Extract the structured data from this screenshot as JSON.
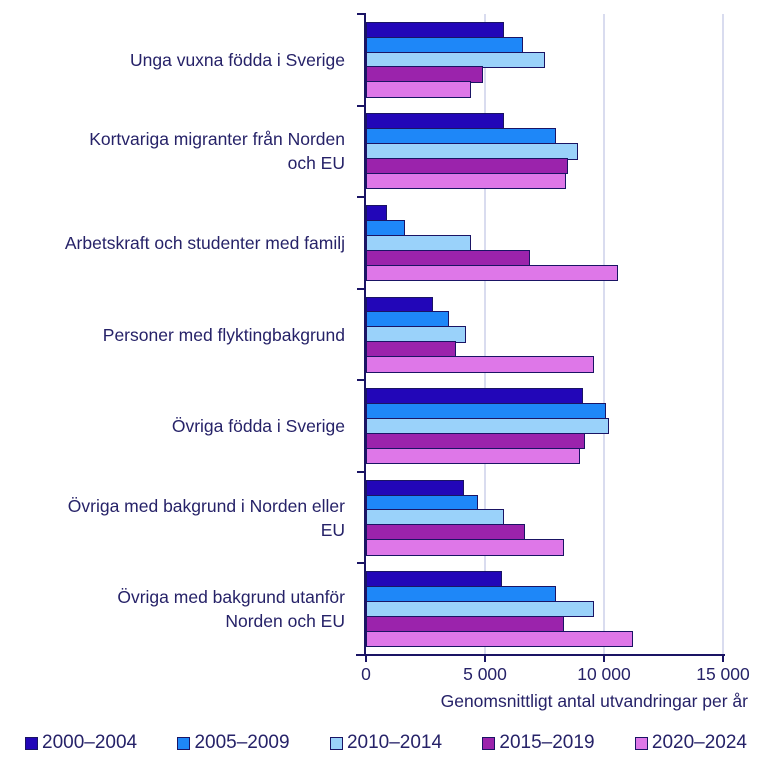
{
  "chart_data": {
    "type": "bar",
    "orientation": "horizontal",
    "xlabel": "Genomsnittligt antal utvandringar per år",
    "xlim": [
      0,
      15000
    ],
    "x_ticks": [
      0,
      5000,
      10000,
      15000
    ],
    "x_tick_labels": [
      "0",
      "5 000",
      "10 000",
      "15 000"
    ],
    "grid": true,
    "legend_position": "bottom",
    "categories": [
      "Unga vuxna födda i Sverige",
      "Kortvariga migranter från Norden\noch EU",
      "Arbetskraft och studenter med familj",
      "Personer med flyktingbakgrund",
      "Övriga födda i Sverige",
      "Övriga med bakgrund i Norden eller\nEU",
      "Övriga med bakgrund utanför\nNorden och EU"
    ],
    "series": [
      {
        "name": "2000–2004",
        "color": "#2206b8",
        "values": [
          5800,
          5800,
          900,
          2800,
          9100,
          4100,
          5700
        ]
      },
      {
        "name": "2005–2009",
        "color": "#1e87f8",
        "values": [
          6600,
          8000,
          1650,
          3500,
          10100,
          4700,
          8000
        ]
      },
      {
        "name": "2010–2014",
        "color": "#9ad2fa",
        "values": [
          7500,
          8900,
          4400,
          4200,
          10200,
          5800,
          9600
        ]
      },
      {
        "name": "2015–2019",
        "color": "#9b23ac",
        "values": [
          4900,
          8500,
          6900,
          3800,
          9200,
          6700,
          8300
        ]
      },
      {
        "name": "2020–2024",
        "color": "#de77e8",
        "values": [
          4400,
          8400,
          10600,
          9600,
          9000,
          8300,
          11200
        ]
      }
    ],
    "colors": {
      "axis": "#1a1464",
      "text": "#262268",
      "gridline": "#d9dcef",
      "bar_border": "#1a1464",
      "background": "#ffffff"
    }
  }
}
